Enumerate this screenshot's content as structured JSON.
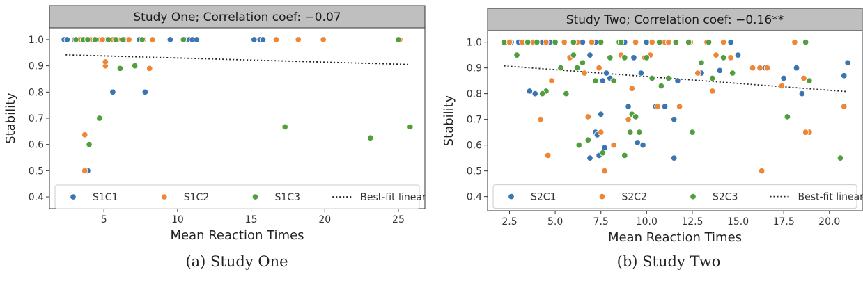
{
  "figure": {
    "captions": [
      "(a) Study One",
      "(b) Study Two"
    ]
  },
  "chart_data": [
    {
      "type": "scatter",
      "title": "Study One; Correlation coef: −0.07",
      "xlabel": "Mean Reaction Times",
      "ylabel": "Stability",
      "xlim": [
        1.3,
        26.8
      ],
      "ylim": [
        0.355,
        1.045
      ],
      "xticks": [
        5,
        10,
        15,
        20,
        25
      ],
      "xtick_labels": [
        "5",
        "10",
        "15",
        "20",
        "25"
      ],
      "yticks": [
        0.4,
        0.5,
        0.6,
        0.7,
        0.8,
        0.9,
        1.0
      ],
      "ytick_labels": [
        "0.4",
        "0.5",
        "0.6",
        "0.7",
        "0.8",
        "0.9",
        "1.0"
      ],
      "grid": false,
      "legend_position": "bottom",
      "fit": {
        "name": "Best-fit linear",
        "x": [
          2.4,
          25.8
        ],
        "y": [
          0.942,
          0.905
        ]
      },
      "series": [
        {
          "name": "S1C1",
          "color": "#3b75af",
          "x": [
            2.3,
            2.5,
            3.0,
            3.2,
            3.5,
            3.8,
            3.9,
            4.2,
            4.6,
            4.9,
            5.2,
            5.6,
            6.0,
            6.4,
            7.4,
            7.8,
            9.5,
            10.5,
            10.8,
            11.0,
            11.3,
            15.2,
            15.6,
            15.8
          ],
          "y": [
            1.0,
            1.0,
            1.0,
            1.0,
            1.0,
            1.0,
            0.5,
            1.0,
            1.0,
            1.0,
            1.0,
            0.8,
            1.0,
            1.0,
            1.0,
            0.8,
            1.0,
            1.0,
            1.0,
            1.0,
            1.0,
            1.0,
            1.0,
            1.0
          ]
        },
        {
          "name": "S1C2",
          "color": "#ef8636",
          "x": [
            3.4,
            3.7,
            3.7,
            3.8,
            4.1,
            4.5,
            4.9,
            5.1,
            5.1,
            5.3,
            5.6,
            5.9,
            6.7,
            7.7,
            8.1,
            8.3,
            16.7,
            18.2,
            19.9,
            25.1
          ],
          "y": [
            1.0,
            0.5,
            0.637,
            1.0,
            1.0,
            1.0,
            1.0,
            0.9,
            0.915,
            1.0,
            1.0,
            1.0,
            1.0,
            1.0,
            0.89,
            1.0,
            1.0,
            1.0,
            1.0,
            1.0
          ]
        },
        {
          "name": "S1C3",
          "color": "#519e3e",
          "x": [
            3.1,
            3.6,
            3.9,
            4.0,
            4.4,
            4.7,
            5.3,
            5.8,
            6.1,
            6.3,
            7.1,
            7.6,
            10.4,
            17.3,
            23.1,
            25.0,
            25.8
          ],
          "y": [
            1.0,
            1.0,
            1.0,
            0.6,
            1.0,
            0.7,
            1.0,
            1.0,
            0.89,
            1.0,
            0.9,
            1.0,
            1.0,
            0.667,
            0.625,
            1.0,
            0.667
          ]
        }
      ]
    },
    {
      "type": "scatter",
      "title": "Study Two; Correlation coef: −0.16**",
      "xlabel": "Mean Reaction Times",
      "ylabel": "Stability",
      "xlim": [
        1.3,
        21.8
      ],
      "ylim": [
        0.345,
        1.045
      ],
      "xticks": [
        2.5,
        5.0,
        7.5,
        10.0,
        12.5,
        15.0,
        17.5,
        20.0
      ],
      "xtick_labels": [
        "2.5",
        "5.0",
        "7.5",
        "10.0",
        "12.5",
        "15.0",
        "17.5",
        "20.0"
      ],
      "yticks": [
        0.4,
        0.5,
        0.6,
        0.7,
        0.8,
        0.9,
        1.0
      ],
      "ytick_labels": [
        "0.4",
        "0.5",
        "0.6",
        "0.7",
        "0.8",
        "0.9",
        "1.0"
      ],
      "grid": false,
      "legend_position": "bottom",
      "fit": {
        "name": "Best-fit linear",
        "x": [
          2.2,
          21.0
        ],
        "y": [
          0.908,
          0.808
        ]
      },
      "series": [
        {
          "name": "S2C1",
          "color": "#3b75af",
          "x": [
            2.3,
            2.6,
            3.0,
            3.4,
            3.6,
            3.9,
            4.3,
            4.7,
            5.0,
            5.5,
            6.0,
            6.5,
            6.9,
            7.2,
            7.5,
            7.8,
            8.0,
            8.8,
            9.0,
            9.3,
            9.5,
            9.7,
            10.0,
            10.5,
            10.8,
            11.0,
            11.5,
            12.3,
            13.0,
            14.0,
            14.6,
            15.0,
            16.5,
            17.5,
            18.2,
            18.5,
            20.8,
            21.0,
            7.2,
            7.6,
            7.7,
            7.4,
            9.8,
            10.3,
            10.7,
            11.5,
            11.7,
            6.9,
            7.3
          ],
          "y": [
            1.0,
            1.0,
            1.0,
            1.0,
            0.81,
            0.8,
            1.0,
            1.0,
            1.0,
            1.0,
            1.0,
            1.0,
            0.95,
            0.65,
            0.72,
            0.88,
            0.86,
            1.0,
            0.75,
            0.94,
            0.61,
            0.88,
            1.0,
            0.75,
            1.0,
            0.75,
            0.55,
            1.0,
            0.88,
            0.89,
            1.0,
            0.95,
            0.9,
            0.86,
            0.9,
            0.8,
            0.87,
            0.92,
            1.0,
            0.85,
            0.59,
            0.56,
            0.6,
            1.0,
            1.0,
            0.7,
            0.85,
            0.55,
            0.64
          ]
        },
        {
          "name": "S2C2",
          "color": "#ef8636",
          "x": [
            2.5,
            3.2,
            3.8,
            4.2,
            4.6,
            5.0,
            5.5,
            5.8,
            6.2,
            6.6,
            7.0,
            7.4,
            7.7,
            8.2,
            8.6,
            9.0,
            9.4,
            9.9,
            10.2,
            10.6,
            11.0,
            11.8,
            12.4,
            12.8,
            13.3,
            13.8,
            14.2,
            14.6,
            15.8,
            16.2,
            16.6,
            17.4,
            18.1,
            18.6,
            18.9,
            20.8,
            4.5,
            4.8,
            6.8,
            7.5,
            9.2,
            10.3,
            11.2,
            13.6,
            16.3,
            18.7
          ],
          "y": [
            1.0,
            1.0,
            1.0,
            0.7,
            0.56,
            1.0,
            1.0,
            0.94,
            1.0,
            0.88,
            1.0,
            0.9,
            0.5,
            0.6,
            0.95,
            0.7,
            1.0,
            0.94,
            0.95,
            0.75,
            1.0,
            0.75,
            1.0,
            0.88,
            1.0,
            0.95,
            1.0,
            0.94,
            0.9,
            0.9,
            0.9,
            0.83,
            1.0,
            0.86,
            0.65,
            0.75,
            1.0,
            0.85,
            0.71,
            0.65,
            0.82,
            1.0,
            1.0,
            0.81,
            0.5,
            0.65
          ]
        },
        {
          "name": "S2C3",
          "color": "#519e3e",
          "x": [
            2.2,
            2.9,
            3.5,
            4.0,
            4.5,
            5.0,
            5.3,
            5.6,
            6.0,
            6.3,
            6.8,
            7.2,
            7.6,
            8.0,
            8.5,
            8.8,
            9.2,
            9.6,
            10.0,
            10.3,
            10.7,
            11.2,
            11.6,
            12.5,
            13.0,
            13.6,
            14.2,
            14.7,
            17.7,
            18.7,
            18.9,
            20.6,
            4.3,
            6.0,
            6.2,
            6.5,
            7.5,
            8.2,
            8.8,
            9.1,
            10.8,
            12.3,
            13.4,
            9.4,
            8.6
          ],
          "y": [
            1.0,
            0.95,
            1.0,
            1.0,
            0.81,
            1.0,
            0.9,
            0.8,
            1.0,
            0.6,
            0.62,
            0.85,
            0.57,
            0.94,
            1.0,
            0.56,
            0.72,
            0.65,
            0.94,
            0.86,
            1.0,
            0.86,
            1.0,
            0.65,
            0.92,
            0.86,
            0.94,
            0.88,
            0.71,
            1.0,
            0.85,
            0.55,
            0.8,
            0.95,
            0.9,
            0.92,
            1.0,
            0.85,
            0.94,
            0.65,
            0.83,
            1.0,
            1.0,
            0.71,
            1.0
          ]
        }
      ]
    }
  ]
}
